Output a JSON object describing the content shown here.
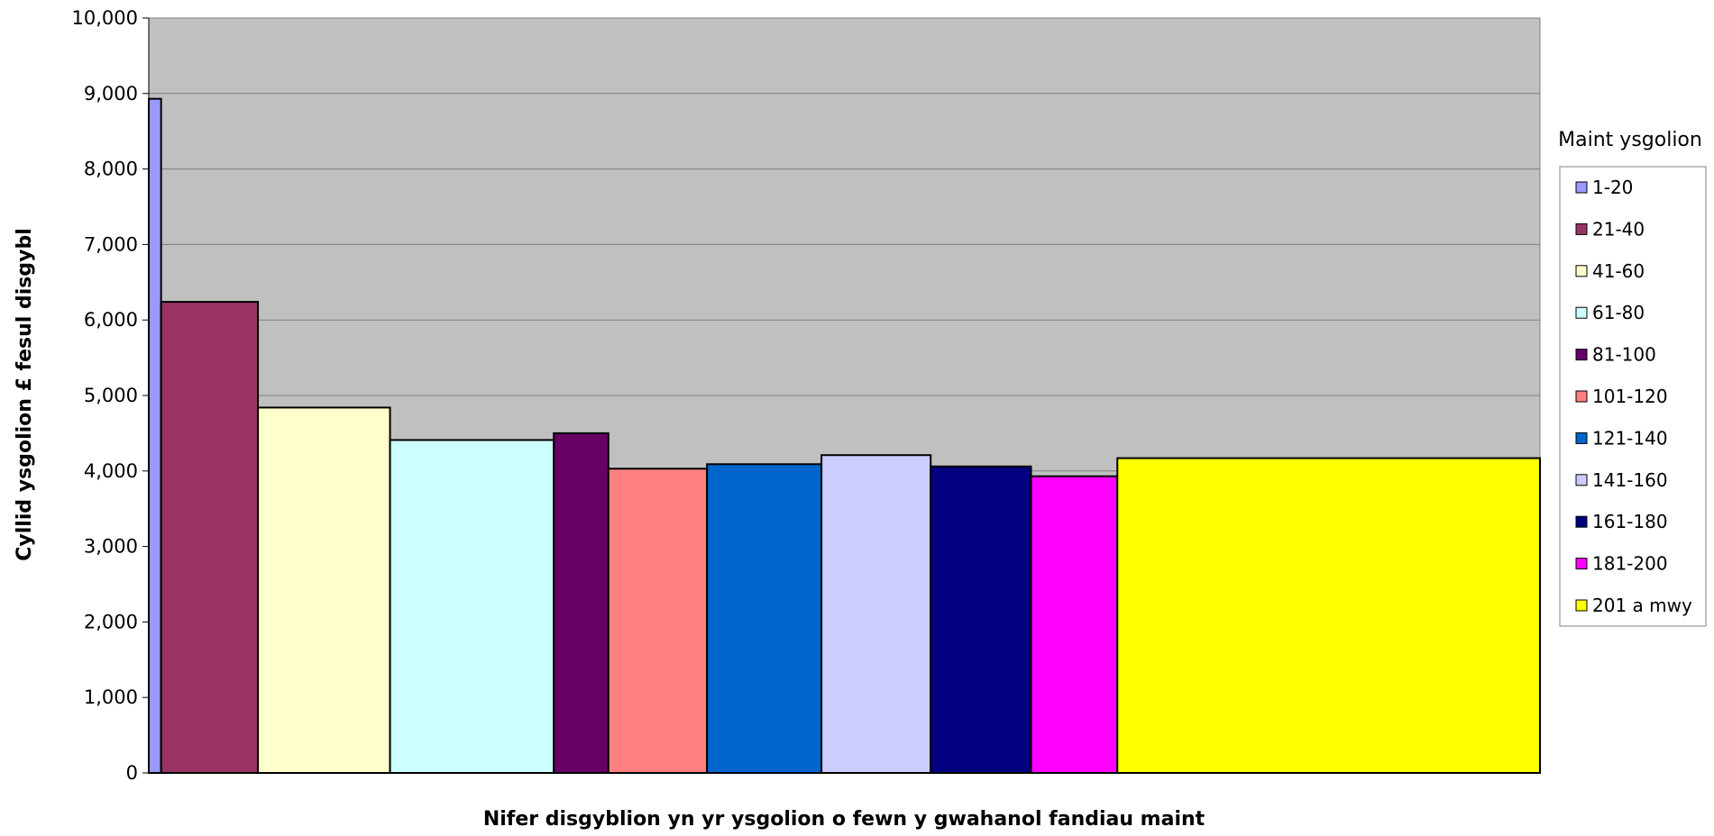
{
  "chart_data": {
    "type": "bar",
    "title": "",
    "xlabel": "Nifer disgyblion yn yr ysgolion o fewn y gwahanol fandiau maint",
    "ylabel": "Cyllid ysgolion £ fesul disgybl",
    "ylim": [
      0,
      10000
    ],
    "yticks": [
      "0",
      "1,000",
      "2,000",
      "3,000",
      "4,000",
      "5,000",
      "6,000",
      "7,000",
      "8,000",
      "9,000",
      "10,000"
    ],
    "grid": true,
    "legend_title": "Maint ysgolion",
    "legend_position": "right",
    "plot_background": "#c0c0c0",
    "bar_width_meaning": "number of pupils in the size band",
    "series": [
      {
        "name": "1-20",
        "value": 8930,
        "width": 7,
        "color": "#9999ff"
      },
      {
        "name": "21-40",
        "value": 6240,
        "width": 55,
        "color": "#993366"
      },
      {
        "name": "41-60",
        "value": 4840,
        "width": 75,
        "color": "#ffffcc"
      },
      {
        "name": "61-80",
        "value": 4410,
        "width": 93,
        "color": "#ccffff"
      },
      {
        "name": "81-100",
        "value": 4500,
        "width": 31,
        "color": "#660066"
      },
      {
        "name": "101-120",
        "value": 4030,
        "width": 56,
        "color": "#ff8080"
      },
      {
        "name": "121-140",
        "value": 4090,
        "width": 65,
        "color": "#0066cc"
      },
      {
        "name": "141-160",
        "value": 4210,
        "width": 62,
        "color": "#ccccff"
      },
      {
        "name": "161-180",
        "value": 4060,
        "width": 57,
        "color": "#000080"
      },
      {
        "name": "181-200",
        "value": 3930,
        "width": 49,
        "color": "#ff00ff"
      },
      {
        "name": "201 a mwy",
        "value": 4170,
        "width": 240,
        "color": "#ffff00"
      }
    ]
  }
}
